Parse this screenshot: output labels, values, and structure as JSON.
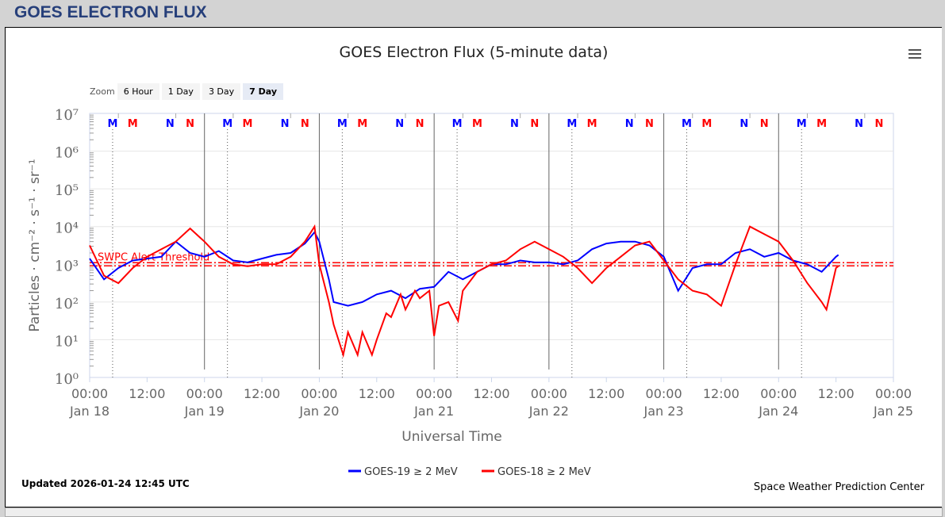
{
  "header": {
    "title": "GOES ELECTRON FLUX"
  },
  "zoom": {
    "label": "Zoom",
    "buttons": [
      "6 Hour",
      "1 Day",
      "3 Day",
      "7 Day"
    ],
    "active": "7 Day"
  },
  "footer": {
    "updated": "Updated 2026-01-24 12:45 UTC",
    "credit": "Space Weather Prediction Center"
  },
  "chart_data": {
    "type": "line",
    "title": "GOES Electron Flux (5-minute data)",
    "xlabel": "Universal Time",
    "ylabel": "Particles · cm⁻² · s⁻¹ · sr⁻¹",
    "yscale": "log",
    "ylim_log10": [
      0,
      7
    ],
    "ytick_labels": [
      "10⁰",
      "10¹",
      "10²",
      "10³",
      "10⁴",
      "10⁵",
      "10⁶",
      "10⁷"
    ],
    "x_units": "hours since Jan 18 00:00 UTC",
    "xlim": [
      0,
      168
    ],
    "xtick_labels": [
      [
        "00:00",
        "Jan 18"
      ],
      [
        "12:00",
        ""
      ],
      [
        "00:00",
        "Jan 19"
      ],
      [
        "12:00",
        ""
      ],
      [
        "00:00",
        "Jan 20"
      ],
      [
        "12:00",
        ""
      ],
      [
        "00:00",
        "Jan 21"
      ],
      [
        "12:00",
        ""
      ],
      [
        "00:00",
        "Jan 22"
      ],
      [
        "12:00",
        ""
      ],
      [
        "00:00",
        "Jan 23"
      ],
      [
        "12:00",
        ""
      ],
      [
        "00:00",
        "Jan 24"
      ],
      [
        "12:00",
        ""
      ],
      [
        "00:00",
        "Jan 25"
      ]
    ],
    "threshold": {
      "label": "SWPC Alert Threshold",
      "value_log10": 3,
      "color": "#ff0000"
    },
    "markers": {
      "hours": [
        4.8,
        9,
        16.8,
        21
      ],
      "labels": [
        "M",
        "M",
        "N",
        "N"
      ],
      "colors": [
        "#0000ff",
        "#ff0000",
        "#0000ff",
        "#ff0000"
      ]
    },
    "series": [
      {
        "name": "GOES-19 ≥ 2 MeV",
        "color": "#0000ff",
        "points_log10": [
          [
            0,
            3.15
          ],
          [
            3,
            2.6
          ],
          [
            6,
            2.9
          ],
          [
            9,
            3.1
          ],
          [
            12,
            3.15
          ],
          [
            15,
            3.2
          ],
          [
            18,
            3.6
          ],
          [
            21,
            3.3
          ],
          [
            24,
            3.2
          ],
          [
            27,
            3.35
          ],
          [
            30,
            3.1
          ],
          [
            33,
            3.05
          ],
          [
            36,
            3.15
          ],
          [
            39,
            3.25
          ],
          [
            42,
            3.3
          ],
          [
            45,
            3.55
          ],
          [
            47,
            3.85
          ],
          [
            48,
            3.6
          ],
          [
            50,
            2.6
          ],
          [
            51,
            2.0
          ],
          [
            54,
            1.9
          ],
          [
            57,
            2.0
          ],
          [
            60,
            2.2
          ],
          [
            63,
            2.3
          ],
          [
            66,
            2.1
          ],
          [
            69,
            2.35
          ],
          [
            72,
            2.4
          ],
          [
            75,
            2.8
          ],
          [
            78,
            2.6
          ],
          [
            81,
            2.8
          ],
          [
            84,
            3.0
          ],
          [
            87,
            3.0
          ],
          [
            90,
            3.1
          ],
          [
            93,
            3.05
          ],
          [
            96,
            3.05
          ],
          [
            99,
            3.0
          ],
          [
            102,
            3.1
          ],
          [
            105,
            3.4
          ],
          [
            108,
            3.55
          ],
          [
            111,
            3.6
          ],
          [
            114,
            3.6
          ],
          [
            117,
            3.5
          ],
          [
            120,
            3.2
          ],
          [
            123,
            2.3
          ],
          [
            126,
            2.9
          ],
          [
            129,
            3.0
          ],
          [
            132,
            3.0
          ],
          [
            135,
            3.3
          ],
          [
            138,
            3.4
          ],
          [
            141,
            3.2
          ],
          [
            144,
            3.3
          ],
          [
            147,
            3.1
          ],
          [
            150,
            3.0
          ],
          [
            153,
            2.8
          ],
          [
            156,
            3.2
          ],
          [
            156.5,
            3.25
          ]
        ]
      },
      {
        "name": "GOES-18 ≥ 2 MeV",
        "color": "#ff0000",
        "points_log10": [
          [
            0,
            3.5
          ],
          [
            3,
            2.7
          ],
          [
            6,
            2.5
          ],
          [
            9,
            2.9
          ],
          [
            12,
            3.2
          ],
          [
            15,
            3.4
          ],
          [
            18,
            3.6
          ],
          [
            21,
            3.95
          ],
          [
            24,
            3.6
          ],
          [
            27,
            3.2
          ],
          [
            30,
            3.0
          ],
          [
            33,
            2.95
          ],
          [
            36,
            3.0
          ],
          [
            39,
            3.0
          ],
          [
            42,
            3.2
          ],
          [
            45,
            3.6
          ],
          [
            47,
            4.0
          ],
          [
            48,
            3.0
          ],
          [
            50,
            2.0
          ],
          [
            51,
            1.4
          ],
          [
            53,
            0.6
          ],
          [
            54,
            1.2
          ],
          [
            56,
            0.6
          ],
          [
            57,
            1.2
          ],
          [
            59,
            0.6
          ],
          [
            60,
            1.0
          ],
          [
            62,
            1.7
          ],
          [
            63,
            1.6
          ],
          [
            65,
            2.2
          ],
          [
            66,
            1.8
          ],
          [
            68,
            2.3
          ],
          [
            69,
            2.1
          ],
          [
            71,
            2.3
          ],
          [
            72,
            1.1
          ],
          [
            73,
            1.9
          ],
          [
            75,
            2.0
          ],
          [
            77,
            1.5
          ],
          [
            78,
            2.3
          ],
          [
            81,
            2.8
          ],
          [
            84,
            3.0
          ],
          [
            87,
            3.1
          ],
          [
            90,
            3.4
          ],
          [
            93,
            3.6
          ],
          [
            96,
            3.4
          ],
          [
            99,
            3.2
          ],
          [
            102,
            2.9
          ],
          [
            105,
            2.5
          ],
          [
            108,
            2.9
          ],
          [
            111,
            3.2
          ],
          [
            114,
            3.5
          ],
          [
            117,
            3.6
          ],
          [
            120,
            3.1
          ],
          [
            123,
            2.6
          ],
          [
            126,
            2.3
          ],
          [
            129,
            2.2
          ],
          [
            132,
            1.9
          ],
          [
            135,
            3.0
          ],
          [
            138,
            4.0
          ],
          [
            141,
            3.8
          ],
          [
            144,
            3.6
          ],
          [
            147,
            3.1
          ],
          [
            150,
            2.5
          ],
          [
            153,
            2.0
          ],
          [
            154,
            1.8
          ],
          [
            156,
            2.9
          ],
          [
            156.5,
            2.95
          ]
        ]
      }
    ]
  }
}
